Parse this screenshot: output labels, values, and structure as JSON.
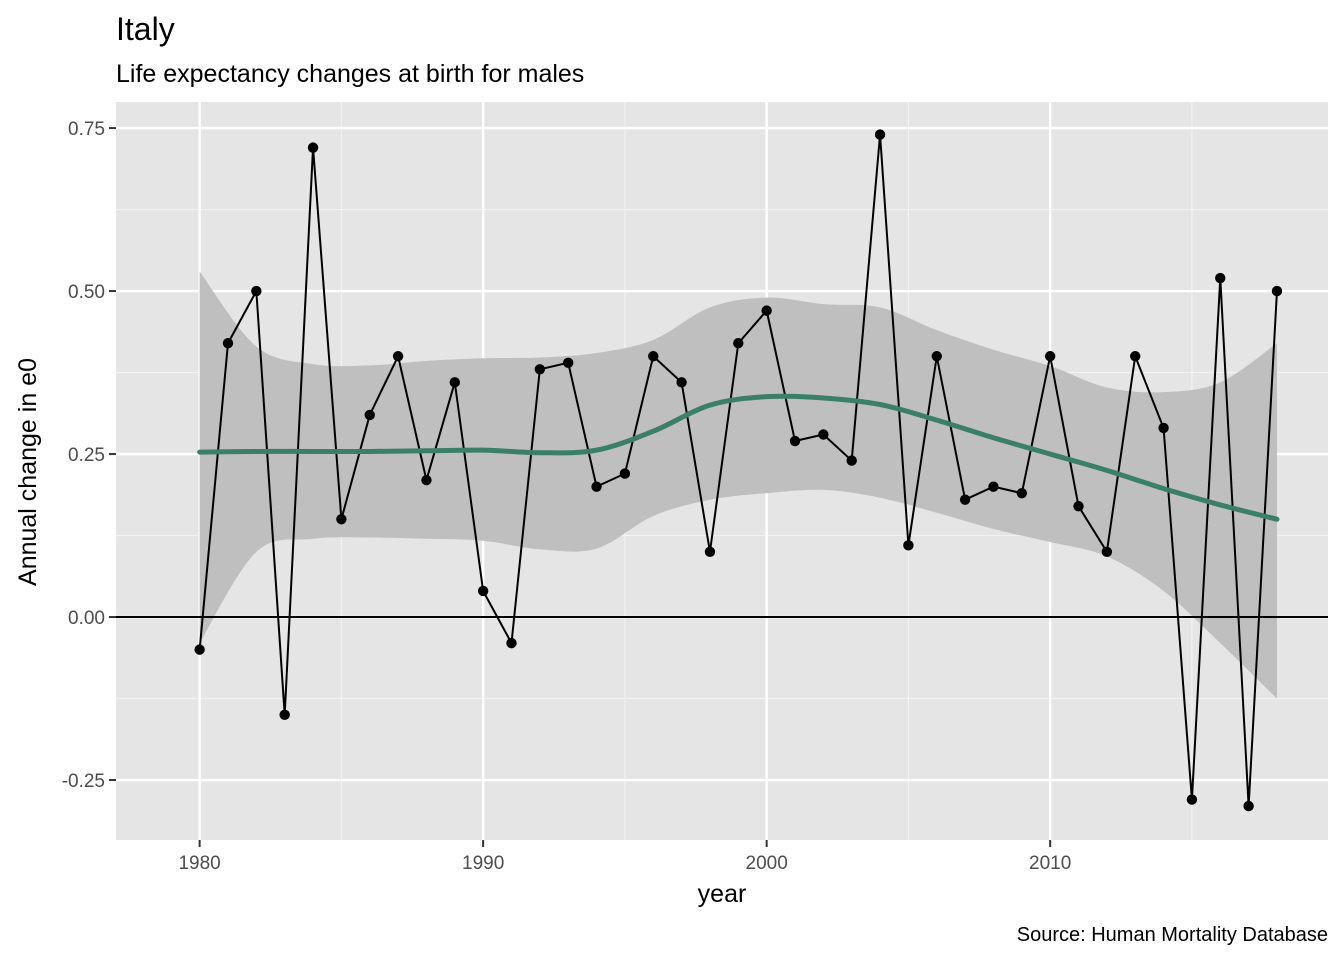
{
  "chart_data": {
    "type": "line",
    "title": "Italy",
    "subtitle": "Life expectancy changes at birth for males",
    "xlabel": "year",
    "ylabel": "Annual change in e0",
    "caption": "Source: Human Mortality Database",
    "xlim": [
      1977.05,
      2019.8
    ],
    "ylim": [
      -0.342,
      0.79
    ],
    "x_ticks": [
      1980,
      1990,
      2000,
      2010
    ],
    "x_tick_labels": [
      "1980",
      "1990",
      "2000",
      "2010"
    ],
    "y_ticks": [
      -0.25,
      0,
      0.25,
      0.5,
      0.75
    ],
    "y_tick_labels": [
      "-0.25",
      "0.00",
      "0.25",
      "0.50",
      "0.75"
    ],
    "grid": true,
    "reference_line": 0,
    "series": [
      {
        "x": [
          1980,
          1981,
          1982,
          1983,
          1984,
          1985,
          1986,
          1987,
          1988,
          1989,
          1990,
          1991,
          1992,
          1993,
          1994,
          1995,
          1996,
          1997,
          1998,
          1999,
          2000,
          2001,
          2002,
          2003,
          2004,
          2005,
          2006,
          2007,
          2008,
          2009,
          2010,
          2011,
          2012,
          2013,
          2014,
          2015,
          2016,
          2017,
          2018
        ],
        "values": [
          -0.05,
          0.42,
          0.5,
          -0.15,
          0.72,
          0.15,
          0.31,
          0.4,
          0.21,
          0.36,
          0.04,
          -0.04,
          0.38,
          0.39,
          0.2,
          0.22,
          0.4,
          0.36,
          0.1,
          0.42,
          0.47,
          0.27,
          0.28,
          0.24,
          0.74,
          0.11,
          0.4,
          0.18,
          0.2,
          0.19,
          0.4,
          0.17,
          0.1,
          0.4,
          0.29,
          -0.28,
          0.52,
          -0.29,
          0.5
        ]
      }
    ],
    "smooth": {
      "x": [
        1980,
        1982,
        1984,
        1986,
        1988,
        1990,
        1992,
        1994,
        1996,
        1998,
        2000,
        2002,
        2004,
        2006,
        2008,
        2010,
        2012,
        2014,
        2016,
        2018
      ],
      "y": [
        0.253,
        0.254,
        0.254,
        0.254,
        0.255,
        0.256,
        0.252,
        0.256,
        0.285,
        0.325,
        0.338,
        0.336,
        0.326,
        0.302,
        0.275,
        0.25,
        0.225,
        0.197,
        0.172,
        0.15
      ],
      "lower": [
        -0.04,
        0.1,
        0.12,
        0.122,
        0.12,
        0.117,
        0.104,
        0.105,
        0.155,
        0.18,
        0.19,
        0.195,
        0.183,
        0.16,
        0.135,
        0.115,
        0.093,
        0.04,
        -0.04,
        -0.125
      ],
      "upper": [
        0.53,
        0.415,
        0.388,
        0.386,
        0.393,
        0.397,
        0.398,
        0.405,
        0.425,
        0.475,
        0.49,
        0.48,
        0.475,
        0.44,
        0.41,
        0.385,
        0.352,
        0.345,
        0.36,
        0.42
      ]
    },
    "colors": {
      "panel": "#e5e5e5",
      "grid_major": "#ffffff",
      "grid_minor": "#f2f2f2",
      "points_line": "#000000",
      "smooth_line": "#3c7f69",
      "ribbon": "#bfbfbf"
    }
  }
}
